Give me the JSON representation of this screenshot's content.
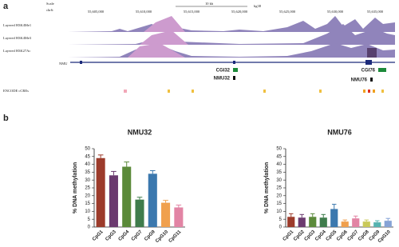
{
  "panel_labels": [
    "a",
    "b"
  ],
  "panel_a": {
    "scale_label": "Scale",
    "chrom_label": "chr6:",
    "scale_size": "10 kb",
    "assembly": "hg38",
    "positions": [
      "55,605,000",
      "55,610,000",
      "55,615,000",
      "55,620,000",
      "55,625,000",
      "55,630,000",
      "55,635,000"
    ],
    "tracks": [
      "Layered H3K4Me1",
      "Layered H3K4Me3",
      "Layered H3K27Ac"
    ],
    "gene": "NMU",
    "features": [
      "CGI32",
      "NMU32",
      "CGI76",
      "NMU76"
    ],
    "ccre_label": "ENCODE cCREs"
  },
  "chart_data": [
    {
      "type": "bar",
      "title": "NMU32",
      "ylabel": "% DNA methylation",
      "categories": [
        "CpG1",
        "CpG3",
        "CpG4",
        "CpG7",
        "CpG9",
        "CpG10",
        "CpG11"
      ],
      "values": [
        44,
        33,
        38.5,
        17.5,
        34,
        15.5,
        12.5
      ],
      "errors": [
        2,
        2.5,
        3,
        1.5,
        2,
        1.5,
        1.5
      ],
      "colors": [
        "#9c3b2b",
        "#6b3a6f",
        "#5b8a3a",
        "#3f7c4c",
        "#3b78ae",
        "#f0a04e",
        "#e284a4"
      ],
      "ylim": [
        0,
        50
      ],
      "yticks": [
        0,
        5,
        10,
        15,
        20,
        25,
        30,
        35,
        40,
        45,
        50
      ]
    },
    {
      "type": "bar",
      "title": "NMU76",
      "ylabel": "% DNA methylation",
      "categories": [
        "CpG1",
        "CpG2",
        "CpG3",
        "CpG4",
        "CpG5",
        "CpG6",
        "CpG7",
        "CpG8",
        "CpG9",
        "CpG10"
      ],
      "values": [
        6.5,
        6,
        6.5,
        6,
        11.5,
        3.5,
        5.5,
        3.5,
        3,
        4
      ],
      "errors": [
        2,
        2,
        2,
        2,
        3,
        1,
        1.5,
        1,
        1,
        1.5
      ],
      "colors": [
        "#9c3b2b",
        "#6b3a6f",
        "#5b8a3a",
        "#3f7c4c",
        "#3b78ae",
        "#f0a04e",
        "#e284a4",
        "#c9c95a",
        "#55b3b0",
        "#86a3d6"
      ],
      "ylim": [
        0,
        50
      ],
      "yticks": [
        0,
        5,
        10,
        15,
        20,
        25,
        30,
        35,
        40,
        45,
        50
      ]
    }
  ]
}
